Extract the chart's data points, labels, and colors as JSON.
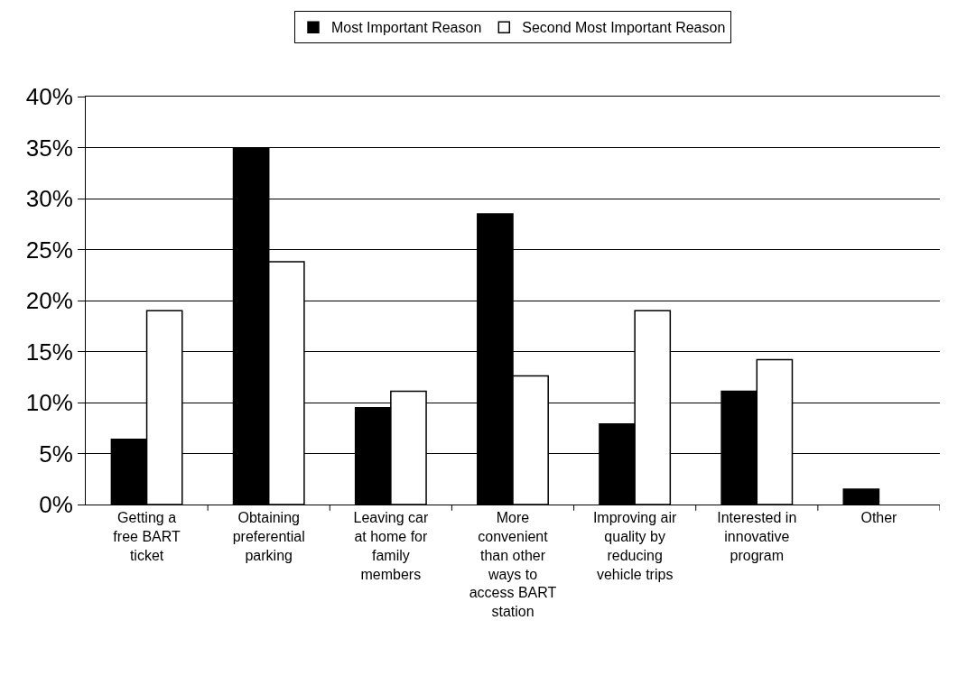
{
  "chart_data": {
    "type": "bar",
    "categories": [
      "Getting a free BART ticket",
      "Obtaining preferential parking",
      "Leaving car at home for family members",
      "More convenient than other ways to access BART station",
      "Improving air quality by reducing vehicle trips",
      "Interested in innovative program",
      "Other"
    ],
    "series": [
      {
        "name": "Most Important Reason",
        "color": "#000000",
        "values": [
          6.4,
          34.9,
          9.5,
          28.5,
          7.9,
          11.1,
          1.5
        ]
      },
      {
        "name": "Second Most Important Reason",
        "color": "#ffffff",
        "values": [
          19.0,
          23.8,
          11.1,
          12.6,
          19.0,
          14.2,
          null
        ]
      }
    ],
    "ylim": [
      0,
      40
    ],
    "yticks": [
      {
        "value": 0,
        "label": "0%"
      },
      {
        "value": 5,
        "label": "5%"
      },
      {
        "value": 10,
        "label": "10%"
      },
      {
        "value": 15,
        "label": "15%"
      },
      {
        "value": 20,
        "label": "20%"
      },
      {
        "value": 25,
        "label": "25%"
      },
      {
        "value": 30,
        "label": "30%"
      },
      {
        "value": 35,
        "label": "35%"
      },
      {
        "value": 40,
        "label": "40%"
      }
    ],
    "grid": "y",
    "legend": "top"
  }
}
